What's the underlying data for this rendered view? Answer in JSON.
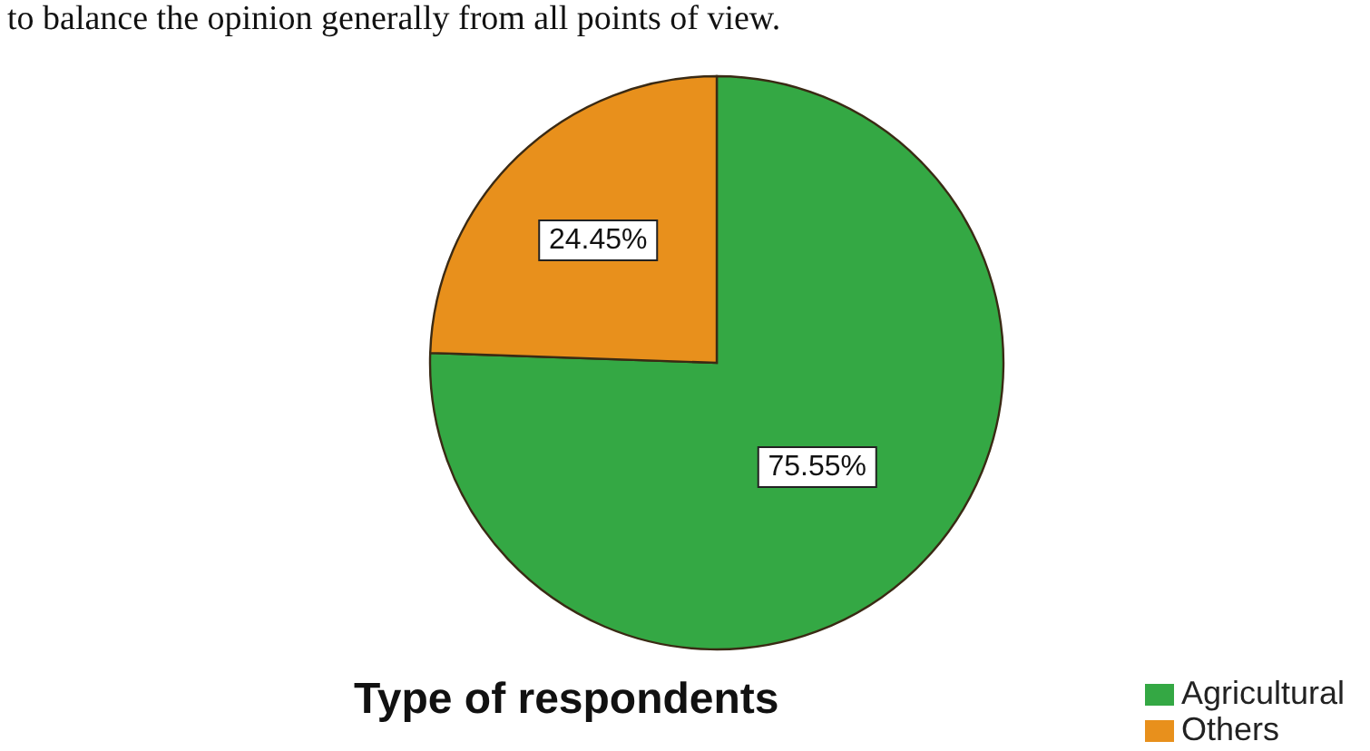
{
  "chart_data": {
    "type": "pie",
    "title": "Type of respondents",
    "annotations": [
      "to balance the opinion generally from all points of view."
    ],
    "categories": [
      "Agricultural",
      "Others"
    ],
    "values": [
      75.55,
      24.45
    ],
    "colors": [
      "#34a844",
      "#e8901c"
    ],
    "value_labels": [
      "75.55%",
      "24.45%"
    ],
    "legend": "bottom right"
  }
}
